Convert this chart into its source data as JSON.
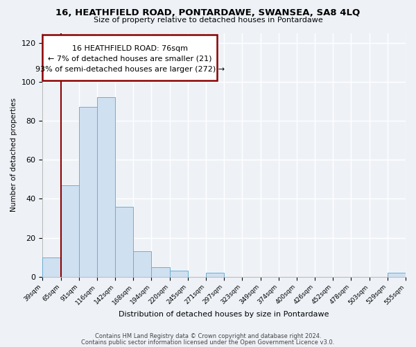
{
  "title": "16, HEATHFIELD ROAD, PONTARDAWE, SWANSEA, SA8 4LQ",
  "subtitle": "Size of property relative to detached houses in Pontardawe",
  "xlabel": "Distribution of detached houses by size in Pontardawe",
  "ylabel": "Number of detached properties",
  "bar_heights": [
    10,
    47,
    87,
    92,
    36,
    13,
    5,
    3,
    0,
    2,
    0,
    0,
    0,
    0,
    0,
    0,
    0,
    0,
    0,
    2
  ],
  "bar_color": "#cfe0f0",
  "bar_edge_color": "#6aafd4",
  "x_labels": [
    "39sqm",
    "65sqm",
    "91sqm",
    "116sqm",
    "142sqm",
    "168sqm",
    "194sqm",
    "220sqm",
    "245sqm",
    "271sqm",
    "297sqm",
    "323sqm",
    "349sqm",
    "374sqm",
    "400sqm",
    "426sqm",
    "452sqm",
    "478sqm",
    "503sqm",
    "529sqm",
    "555sqm"
  ],
  "ylim": [
    0,
    125
  ],
  "yticks": [
    0,
    20,
    40,
    60,
    80,
    100,
    120
  ],
  "annotation_line1": "16 HEATHFIELD ROAD: 76sqm",
  "annotation_line2": "← 7% of detached houses are smaller (21)",
  "annotation_line3": "93% of semi-detached houses are larger (272) →",
  "vline_x": 1.0,
  "vline_color": "#8b0000",
  "footer_line1": "Contains HM Land Registry data © Crown copyright and database right 2024.",
  "footer_line2": "Contains public sector information licensed under the Open Government Licence v3.0.",
  "bg_color": "#eef2f7",
  "grid_color": "#ffffff",
  "ann_box_color": "#8b0000"
}
